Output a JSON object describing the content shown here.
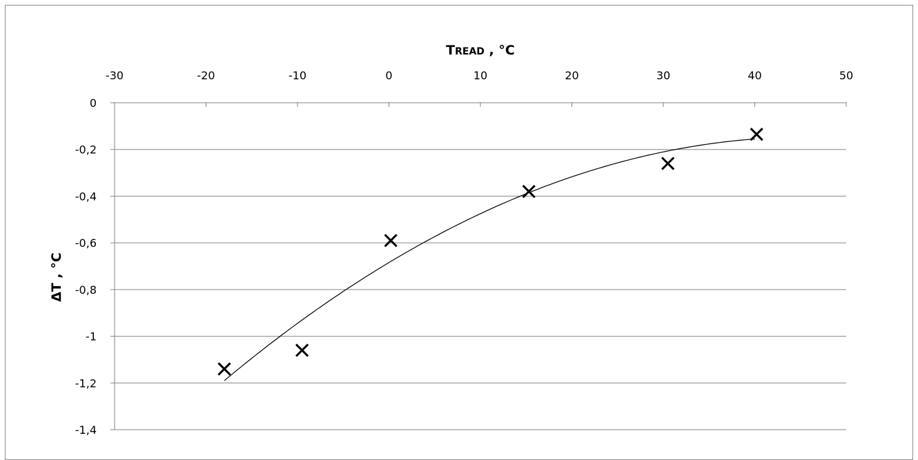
{
  "chart_data": {
    "type": "scatter",
    "xlabel_main": "T",
    "xlabel_smallcaps": "READ",
    "xlabel_unit": " , °C",
    "ylabel": "ΔT , °C",
    "xlim": [
      -30,
      50
    ],
    "ylim": [
      -1.4,
      0
    ],
    "x_axis_position": "top",
    "x_ticks": [
      "-30",
      "-20",
      "-10",
      "0",
      "10",
      "20",
      "30",
      "40",
      "50"
    ],
    "y_ticks": [
      "0",
      "-0,2",
      "-0,4",
      "-0,6",
      "-0,8",
      "-1",
      "-1,2",
      "-1,4"
    ],
    "grid": "horizontal",
    "series": [
      {
        "marker": "x",
        "color": "#000000",
        "points": [
          {
            "x": -18,
            "y": -1.14
          },
          {
            "x": -9.5,
            "y": -1.06
          },
          {
            "x": 0.2,
            "y": -0.59
          },
          {
            "x": 15.3,
            "y": -0.38
          },
          {
            "x": 30.5,
            "y": -0.26
          },
          {
            "x": 40.2,
            "y": -0.135
          }
        ]
      }
    ],
    "trendline": {
      "type": "polynomial",
      "color": "#000000",
      "x_range": [
        -18,
        40
      ],
      "points": [
        {
          "x": -18,
          "y": -1.19
        },
        {
          "x": 15.3,
          "y": -0.385
        },
        {
          "x": 40,
          "y": -0.155
        }
      ]
    }
  }
}
